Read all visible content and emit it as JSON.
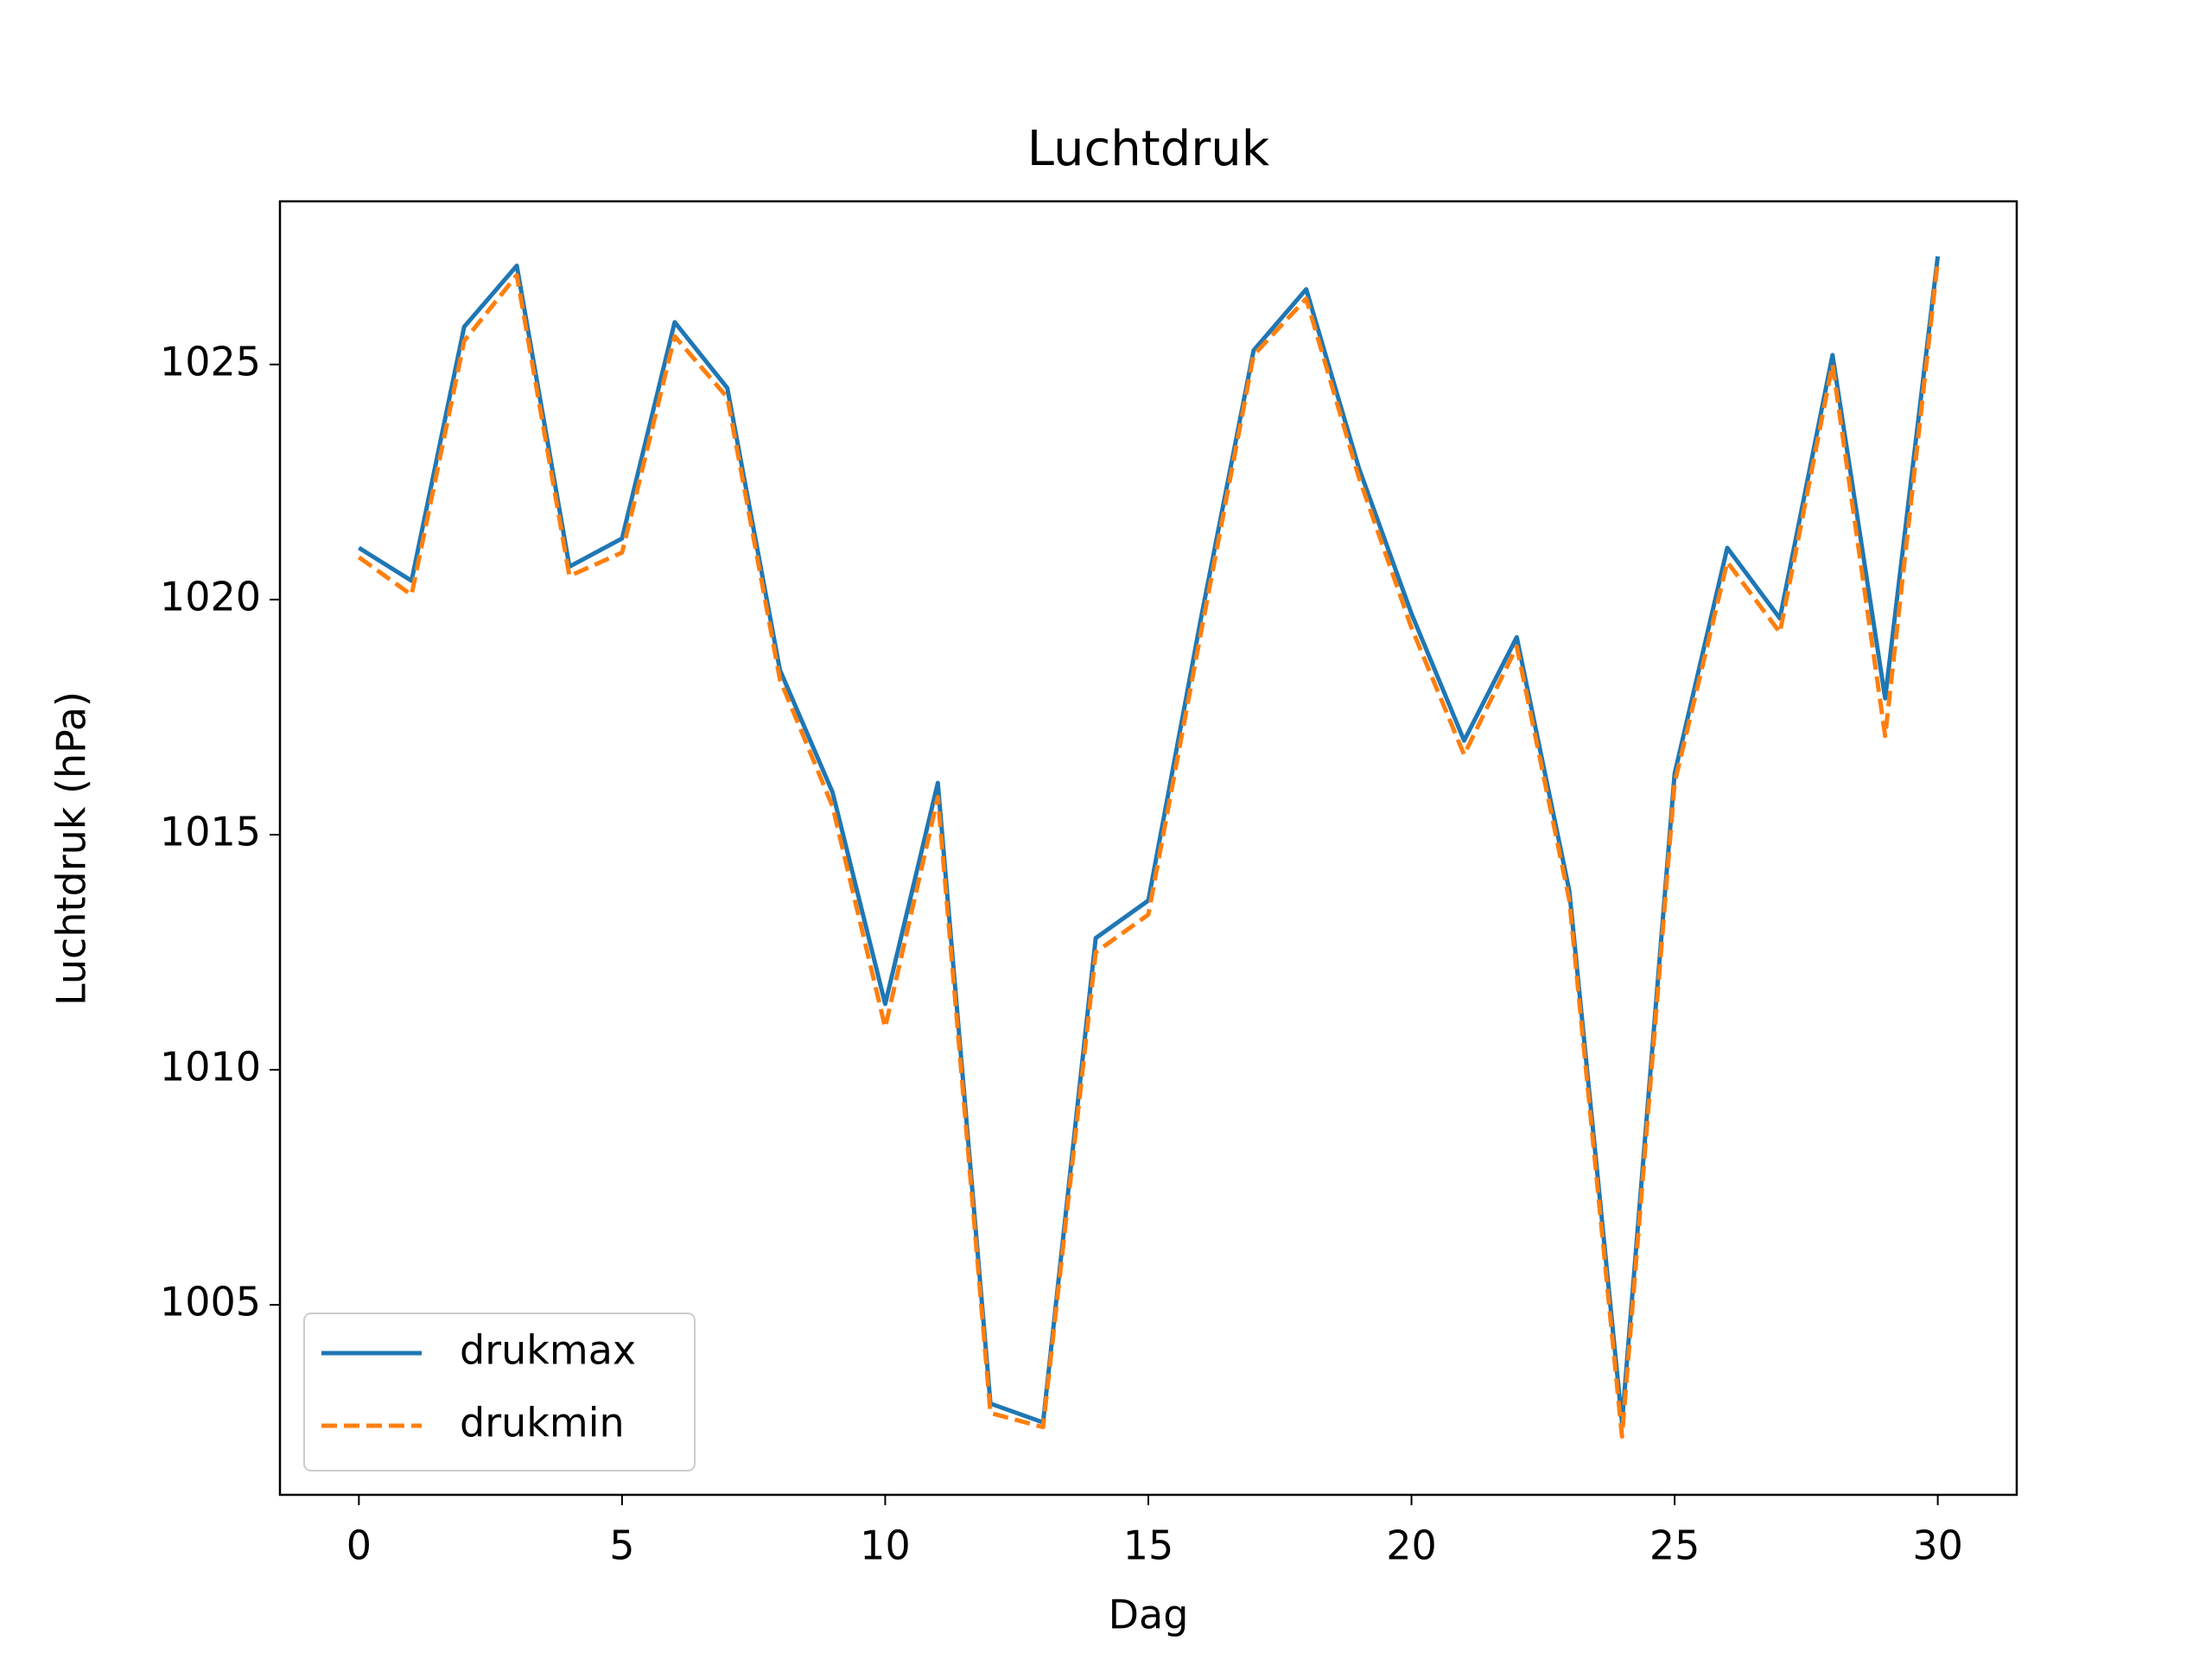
{
  "chart_data": {
    "type": "line",
    "title": "Luchtdruk",
    "xlabel": "Dag",
    "ylabel": "Luchtdruk (hPa)",
    "x": [
      0,
      1,
      2,
      3,
      4,
      5,
      6,
      7,
      8,
      9,
      10,
      11,
      12,
      13,
      14,
      15,
      16,
      17,
      18,
      19,
      20,
      21,
      22,
      23,
      24,
      25,
      26,
      27,
      28,
      29,
      30
    ],
    "series": [
      {
        "name": "drukmax",
        "color": "#1f77b4",
        "dash": "solid",
        "values": [
          1021.1,
          1020.4,
          1025.8,
          1027.1,
          1020.7,
          1021.3,
          1025.9,
          1024.5,
          1018.5,
          1015.9,
          1011.4,
          1016.1,
          1002.9,
          1002.5,
          1012.8,
          1013.6,
          1019.6,
          1025.3,
          1026.6,
          1022.8,
          1019.7,
          1017.0,
          1019.2,
          1013.8,
          1002.5,
          1016.3,
          1021.1,
          1019.6,
          1025.2,
          1017.9,
          1027.3
        ]
      },
      {
        "name": "drukmin",
        "color": "#ff7f0e",
        "dash": "dashed",
        "values": [
          1020.9,
          1020.1,
          1025.5,
          1026.9,
          1020.5,
          1021.0,
          1025.6,
          1024.3,
          1018.3,
          1015.6,
          1010.9,
          1015.8,
          1002.7,
          1002.4,
          1012.5,
          1013.3,
          1019.3,
          1025.2,
          1026.4,
          1022.6,
          1019.4,
          1016.7,
          1019.0,
          1013.6,
          1002.2,
          1016.1,
          1020.8,
          1019.3,
          1025.0,
          1017.1,
          1027.2
        ]
      }
    ],
    "xlim": [
      -1.5,
      31.5
    ],
    "xticks": [
      0,
      5,
      10,
      15,
      20,
      25,
      30
    ],
    "ylim": [
      1000.96,
      1028.47
    ],
    "yticks": [
      1005,
      1010,
      1015,
      1020,
      1025
    ],
    "legend": "lower left",
    "grid": false
  }
}
